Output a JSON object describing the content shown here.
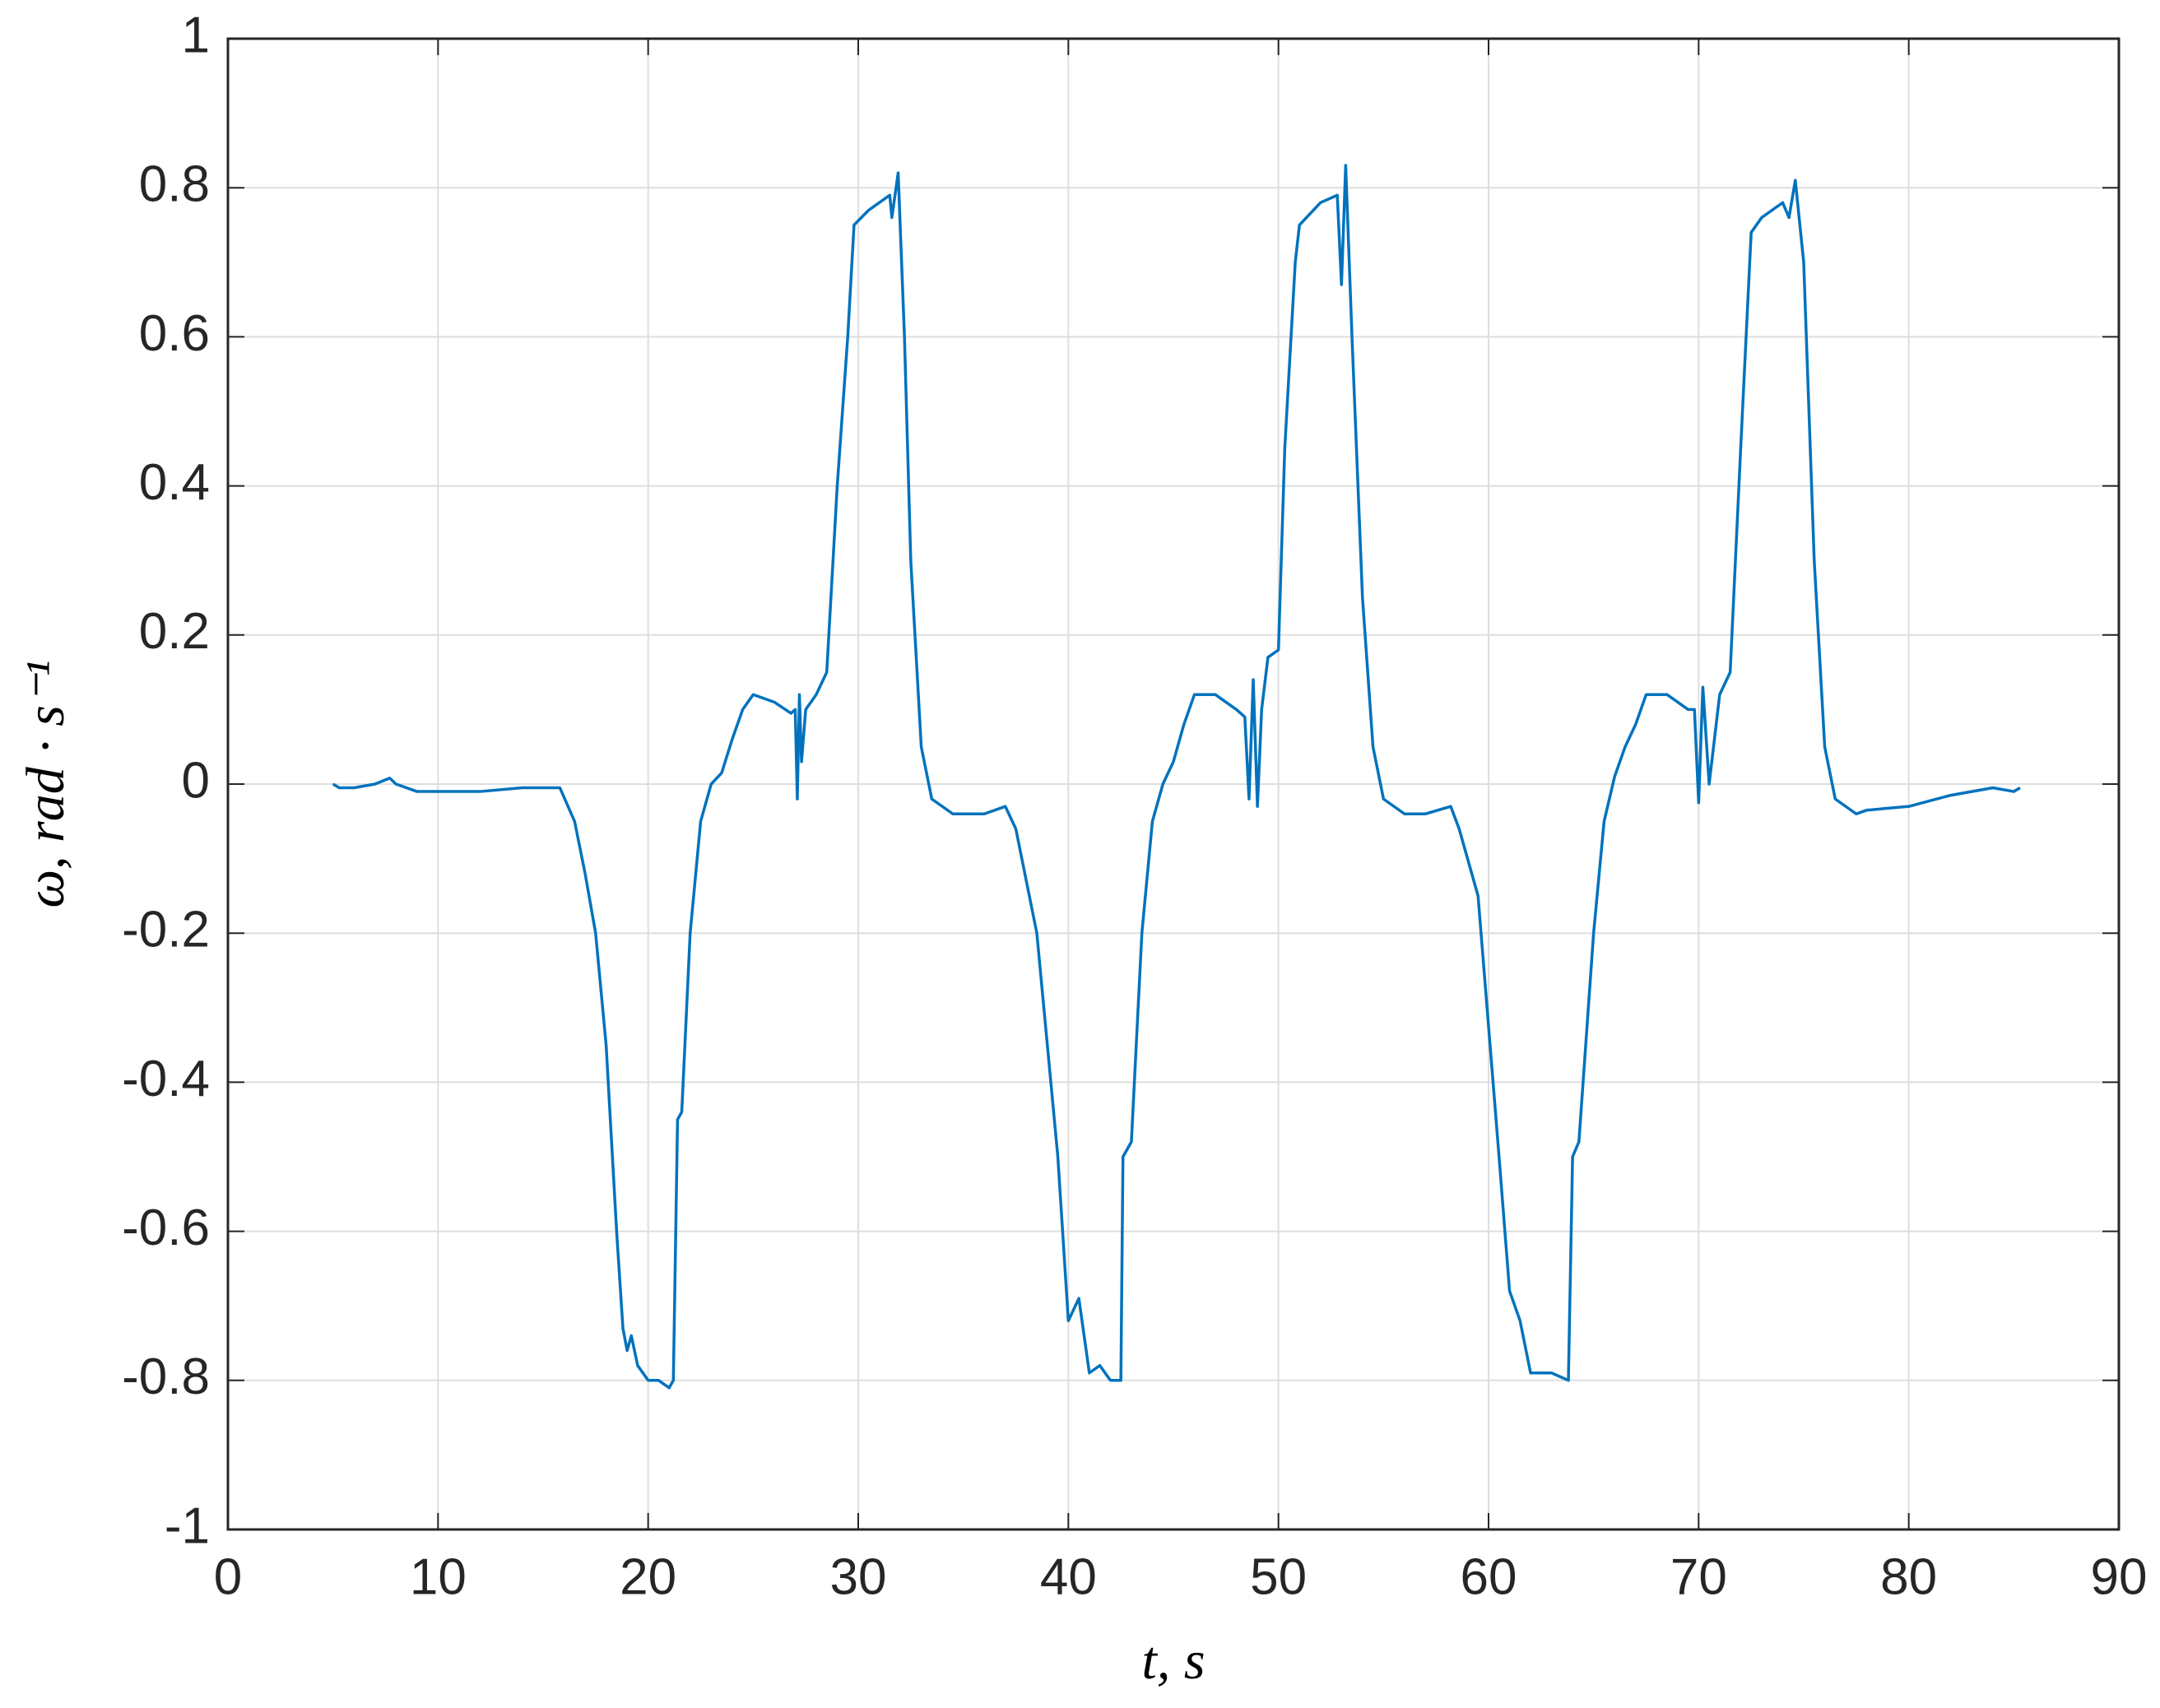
{
  "chart_data": {
    "type": "line",
    "xlabel": "t, s",
    "ylabel": "ω, rad · s⁻¹",
    "xlim": [
      0,
      90
    ],
    "xticks": [
      0,
      10,
      20,
      30,
      40,
      50,
      60,
      70,
      80,
      90
    ],
    "ylim": [
      -1,
      1
    ],
    "yticks": [
      -1,
      -0.8,
      -0.6,
      -0.4,
      -0.2,
      0,
      0.2,
      0.4,
      0.6,
      0.8,
      1
    ],
    "grid": true,
    "series": [
      {
        "color": "#0072bd",
        "x": [
          5,
          5.3,
          6,
          7,
          7.7,
          8,
          9,
          10,
          12,
          14,
          15.8,
          16.5,
          17,
          17.5,
          18,
          18.5,
          18.8,
          19,
          19.2,
          19.5,
          20,
          20.5,
          21,
          21.2,
          21.4,
          21.6,
          22,
          22.5,
          23,
          23.5,
          24,
          24.5,
          25,
          26,
          26.8,
          27,
          27.1,
          27.2,
          27.3,
          27.5,
          28,
          28.5,
          29,
          29.5,
          29.8,
          30.5,
          31,
          31.5,
          31.6,
          31.9,
          32.2,
          32.5,
          33,
          33.5,
          34.5,
          36,
          37,
          37.5,
          38.5,
          39.5,
          40,
          40.5,
          41,
          41.5,
          42,
          42.5,
          42.6,
          43,
          43.5,
          44,
          44.5,
          45,
          45.5,
          46,
          47,
          48,
          48.4,
          48.6,
          48.8,
          49,
          49.2,
          49.5,
          50,
          50.3,
          50.8,
          51,
          52,
          52.8,
          53,
          53.2,
          53.5,
          54,
          54.5,
          55,
          56,
          57,
          58.2,
          58.6,
          59.5,
          60.5,
          61,
          61.5,
          62,
          63,
          63.8,
          64,
          64.3,
          65,
          65.5,
          66,
          66.5,
          67,
          67.5,
          68.5,
          69.5,
          69.8,
          70,
          70.2,
          70.5,
          71,
          71.5,
          72,
          72.5,
          73,
          74,
          74.3,
          74.6,
          75,
          75.5,
          76,
          76.5,
          77.5,
          78,
          80,
          82,
          84,
          85,
          85.3
        ],
        "values": [
          0,
          -0.005,
          -0.005,
          0,
          0.008,
          0,
          -0.01,
          -0.01,
          -0.01,
          -0.005,
          -0.005,
          -0.05,
          -0.12,
          -0.2,
          -0.35,
          -0.6,
          -0.73,
          -0.76,
          -0.74,
          -0.78,
          -0.8,
          -0.8,
          -0.81,
          -0.8,
          -0.45,
          -0.44,
          -0.2,
          -0.05,
          0,
          0.015,
          0.06,
          0.1,
          0.12,
          0.11,
          0.095,
          0.1,
          -0.02,
          0.12,
          0.03,
          0.1,
          0.12,
          0.15,
          0.4,
          0.6,
          0.75,
          0.77,
          0.78,
          0.79,
          0.76,
          0.82,
          0.6,
          0.3,
          0.05,
          -0.02,
          -0.04,
          -0.04,
          -0.03,
          -0.06,
          -0.2,
          -0.5,
          -0.72,
          -0.69,
          -0.79,
          -0.78,
          -0.8,
          -0.8,
          -0.5,
          -0.48,
          -0.2,
          -0.05,
          0,
          0.03,
          0.08,
          0.12,
          0.12,
          0.1,
          0.09,
          -0.02,
          0.14,
          -0.03,
          0.1,
          0.17,
          0.18,
          0.45,
          0.7,
          0.75,
          0.78,
          0.79,
          0.67,
          0.83,
          0.6,
          0.25,
          0.05,
          -0.02,
          -0.04,
          -0.04,
          -0.03,
          -0.06,
          -0.15,
          -0.5,
          -0.68,
          -0.72,
          -0.79,
          -0.79,
          -0.8,
          -0.5,
          -0.48,
          -0.2,
          -0.05,
          0.01,
          0.05,
          0.08,
          0.12,
          0.12,
          0.1,
          0.1,
          -0.025,
          0.13,
          0,
          0.12,
          0.15,
          0.45,
          0.74,
          0.76,
          0.78,
          0.76,
          0.81,
          0.7,
          0.3,
          0.05,
          -0.02,
          -0.04,
          -0.035,
          -0.03,
          -0.015,
          -0.005,
          -0.01,
          -0.005
        ]
      }
    ]
  }
}
